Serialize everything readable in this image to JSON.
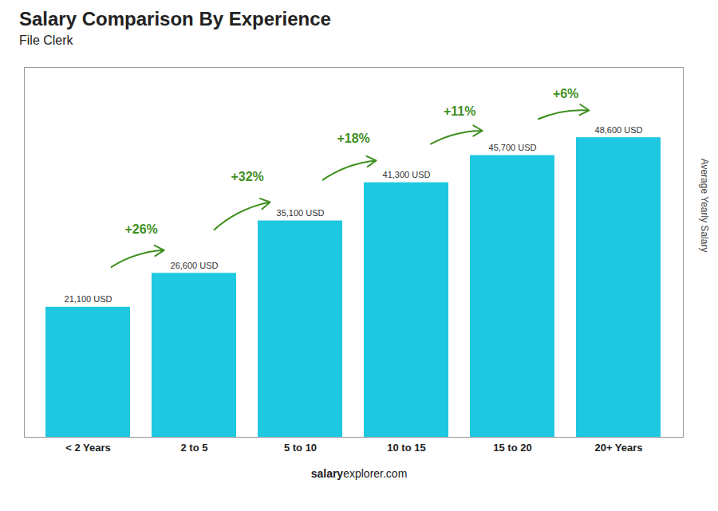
{
  "chart_data": {
    "type": "bar",
    "title": "Salary Comparison By Experience",
    "subtitle": "File Clerk",
    "categories": [
      "< 2 Years",
      "2 to 5",
      "5 to 10",
      "10 to 15",
      "15 to 20",
      "20+ Years"
    ],
    "values": [
      21100,
      26600,
      35100,
      41300,
      45700,
      48600
    ],
    "value_labels": [
      "21,100 USD",
      "26,600 USD",
      "35,100 USD",
      "41,300 USD",
      "45,700 USD",
      "48,600 USD"
    ],
    "data_labels": true,
    "color": "#1ec8e0",
    "ylabel": "Average Yearly Salary",
    "ylim": [
      0,
      60000
    ],
    "tick_labels": "x",
    "grid": false,
    "annotations": [
      {
        "text": "+26%",
        "from": "< 2 Years",
        "to": "2 to 5"
      },
      {
        "text": "+32%",
        "from": "2 to 5",
        "to": "5 to 10"
      },
      {
        "text": "+18%",
        "from": "5 to 10",
        "to": "10 to 15"
      },
      {
        "text": "+11%",
        "from": "10 to 15",
        "to": "15 to 20"
      },
      {
        "text": "+6%",
        "from": "15 to 20",
        "to": "20+ Years"
      }
    ],
    "footer": [
      "salary",
      "explorer.com"
    ]
  }
}
